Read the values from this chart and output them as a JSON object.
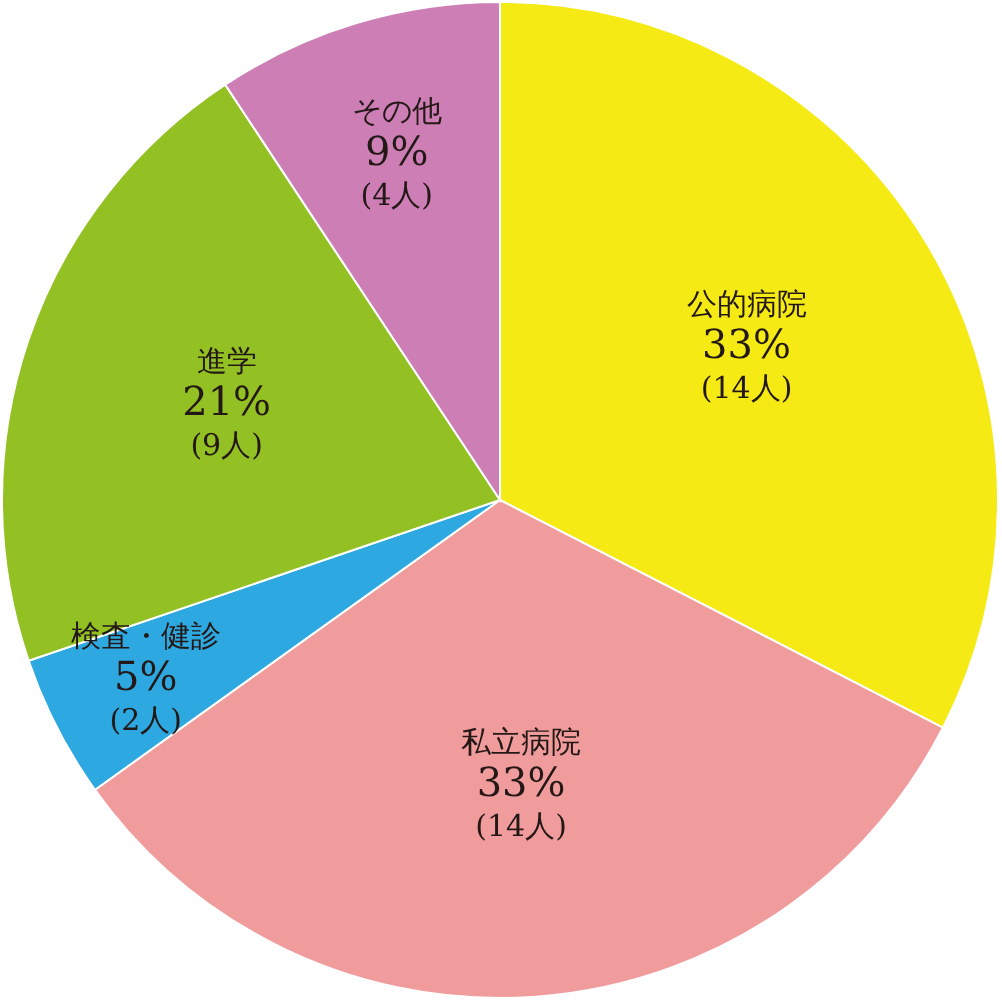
{
  "chart_data": {
    "type": "pie",
    "categories": [
      "公的病院",
      "私立病院",
      "検査・健診",
      "進学",
      "その他"
    ],
    "values": [
      14,
      14,
      2,
      9,
      4
    ],
    "value_labels": [
      "33%\n(14人)",
      "33%\n(14人)",
      "5%\n(2人)",
      "21%\n(9人)",
      "9%\n(4人)"
    ],
    "colors": [
      "#f5ea14",
      "#f09c9c",
      "#2ea8e0",
      "#93c023",
      "#cc7eb5"
    ],
    "legend": false
  }
}
